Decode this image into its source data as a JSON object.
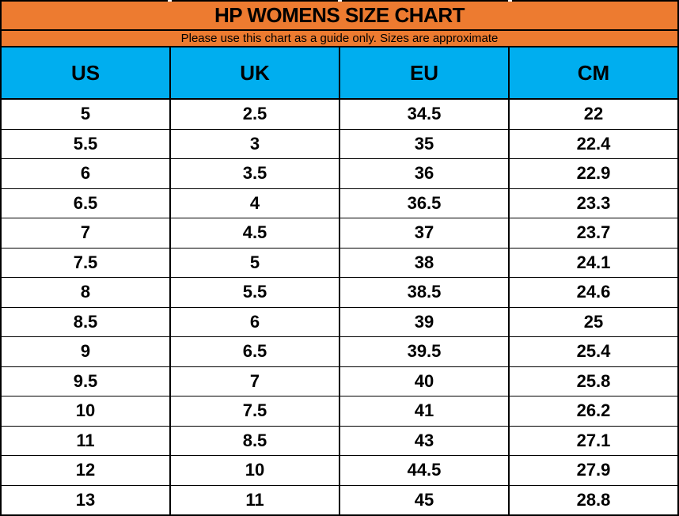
{
  "title": "HP WOMENS SIZE CHART",
  "subtitle": "Please use this chart as a guide only. Sizes are approximate",
  "colors": {
    "orange": "#ED7B30",
    "cyan": "#00AEEF",
    "border": "#000000",
    "row_bg": "#FFFFFF",
    "text": "#000000"
  },
  "chart_data": {
    "type": "table",
    "title": "HP WOMENS SIZE CHART",
    "subtitle": "Please use this chart as a guide only. Sizes are approximate",
    "columns": [
      "US",
      "UK",
      "EU",
      "CM"
    ],
    "rows": [
      [
        "5",
        "2.5",
        "34.5",
        "22"
      ],
      [
        "5.5",
        "3",
        "35",
        "22.4"
      ],
      [
        "6",
        "3.5",
        "36",
        "22.9"
      ],
      [
        "6.5",
        "4",
        "36.5",
        "23.3"
      ],
      [
        "7",
        "4.5",
        "37",
        "23.7"
      ],
      [
        "7.5",
        "5",
        "38",
        "24.1"
      ],
      [
        "8",
        "5.5",
        "38.5",
        "24.6"
      ],
      [
        "8.5",
        "6",
        "39",
        "25"
      ],
      [
        "9",
        "6.5",
        "39.5",
        "25.4"
      ],
      [
        "9.5",
        "7",
        "40",
        "25.8"
      ],
      [
        "10",
        "7.5",
        "41",
        "26.2"
      ],
      [
        "11",
        "8.5",
        "43",
        "27.1"
      ],
      [
        "12",
        "10",
        "44.5",
        "27.9"
      ],
      [
        "13",
        "11",
        "45",
        "28.8"
      ]
    ],
    "layout": {
      "header_bg": "#00AEEF",
      "title_bg": "#ED7B30",
      "grid": true
    }
  }
}
